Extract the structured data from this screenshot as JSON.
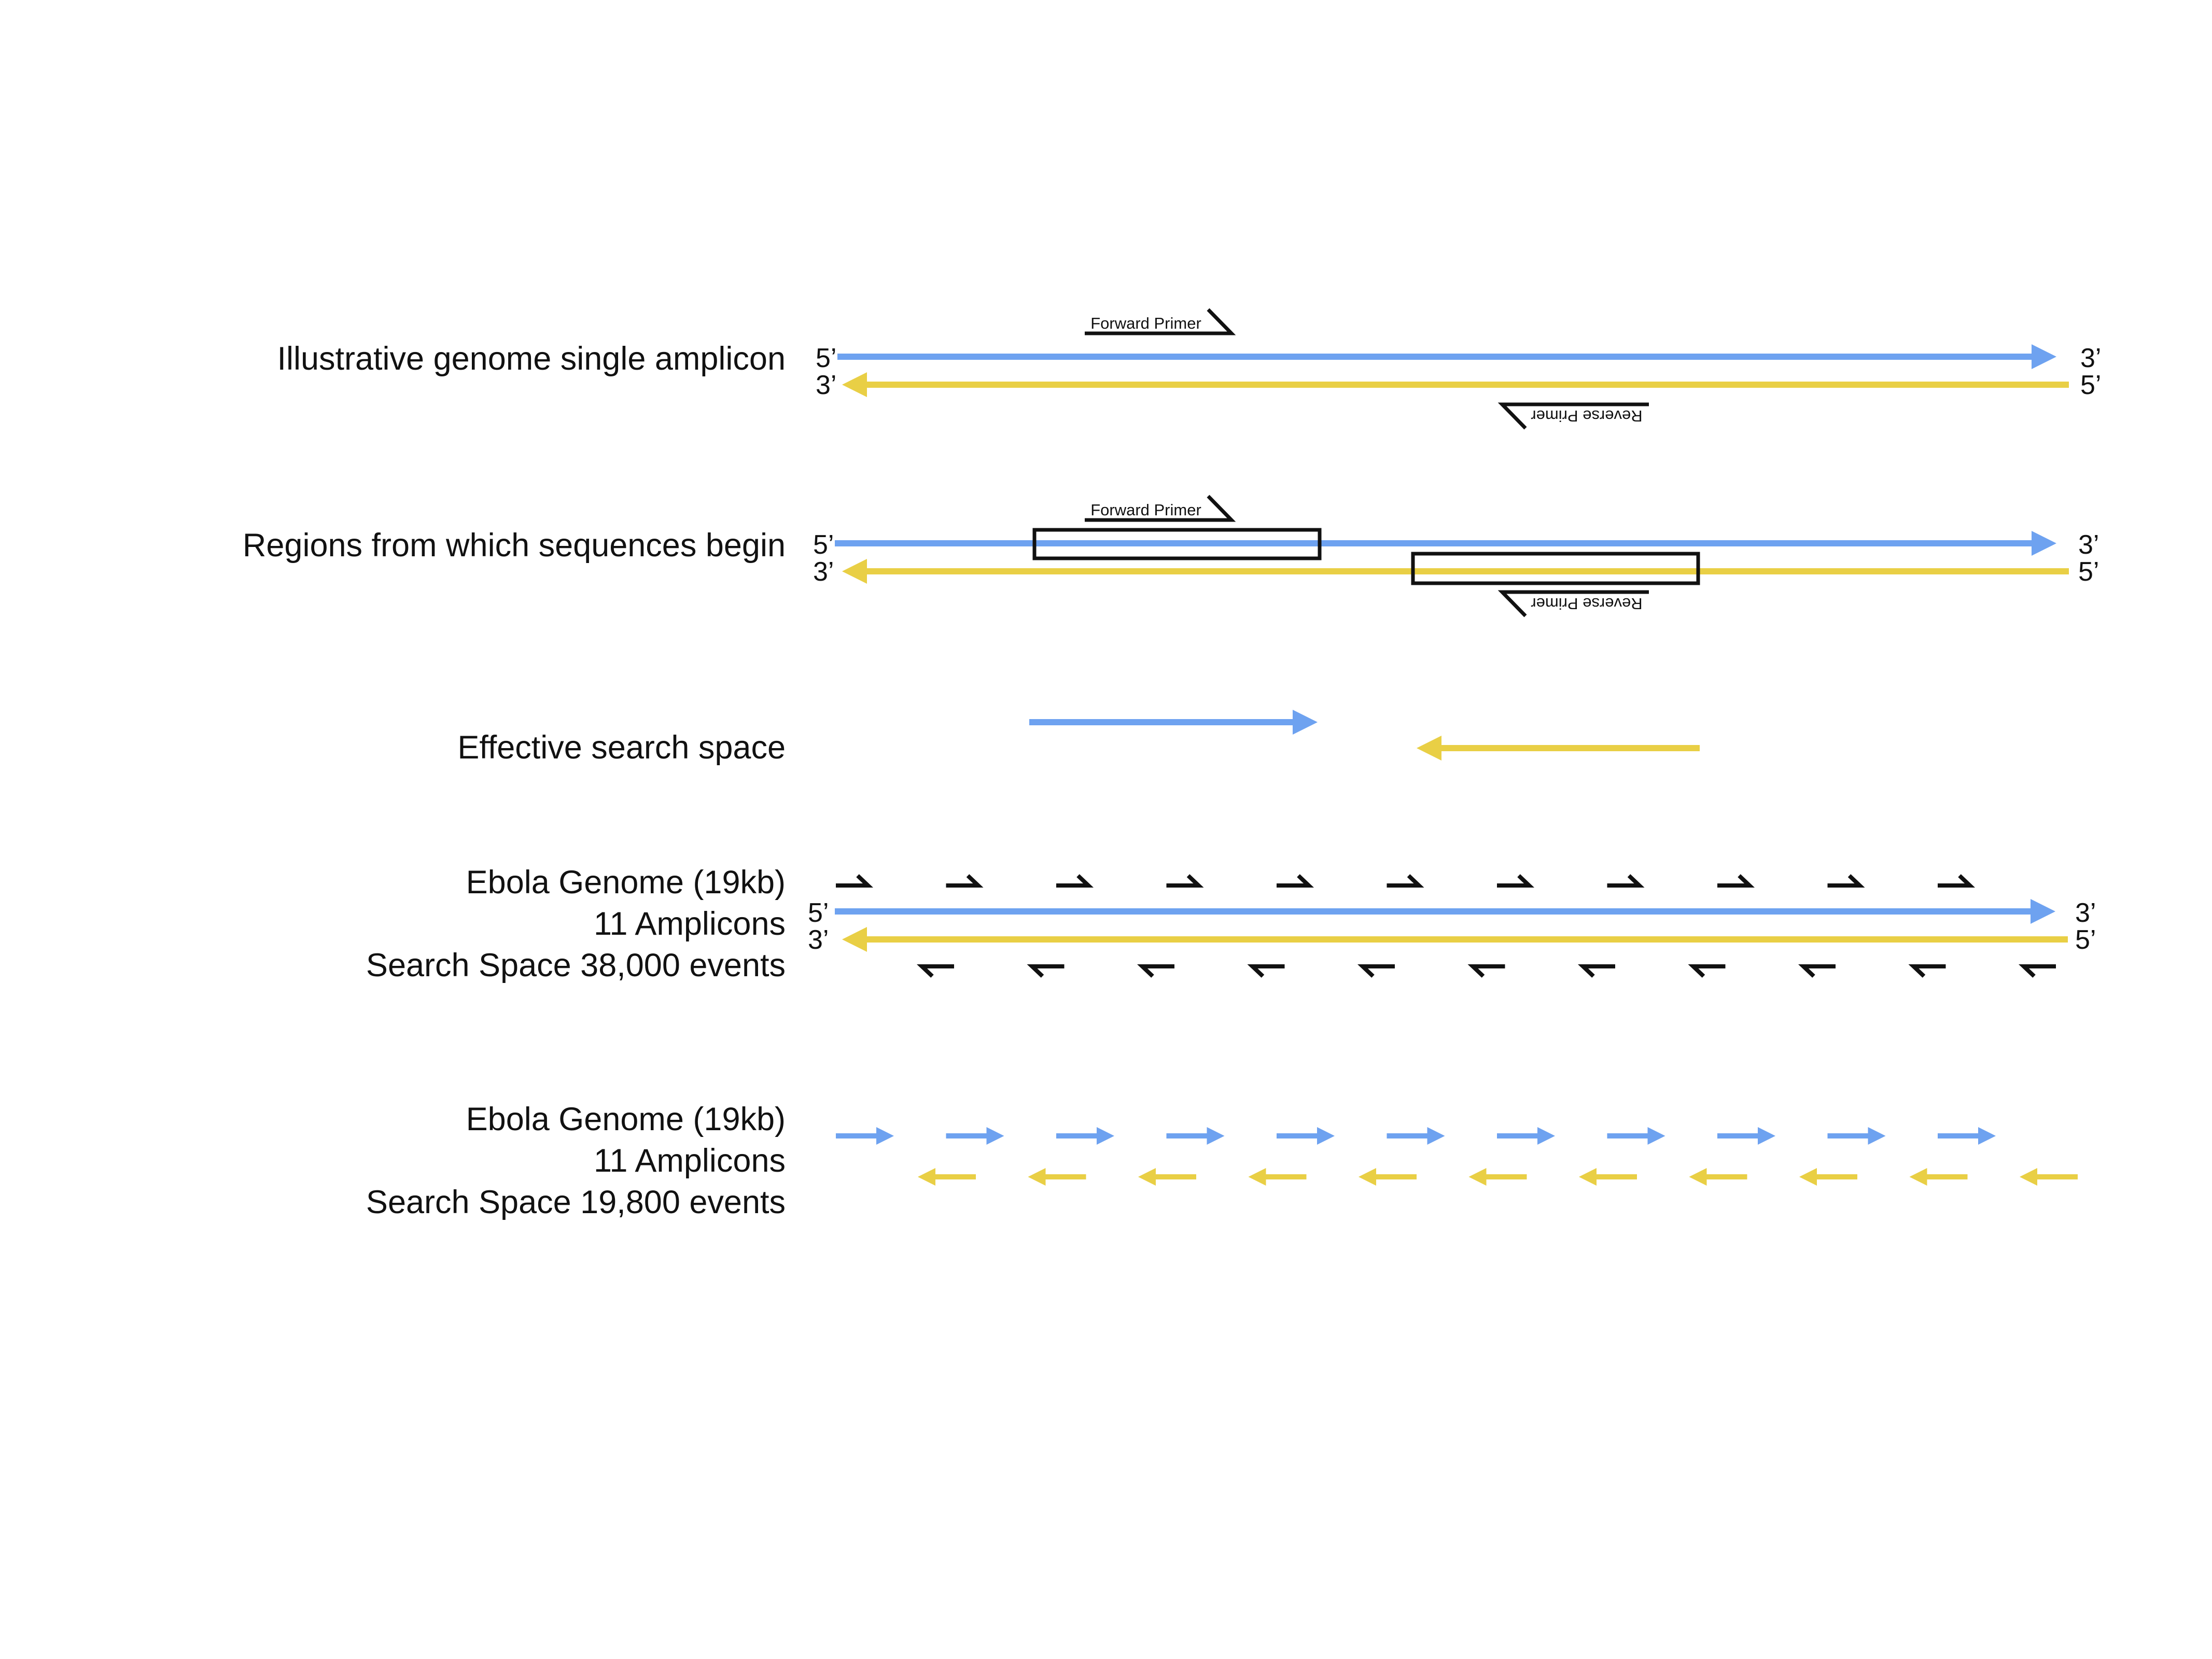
{
  "colors": {
    "forward_strand": "#6ea2f0",
    "reverse_strand": "#e9cf45",
    "ink": "#111111"
  },
  "rows": [
    {
      "id": "single",
      "label_lines": [
        "Illustrative genome single amplicon"
      ],
      "end_labels": {
        "top_left": "5’",
        "top_right": "3’",
        "bottom_left": "3’",
        "bottom_right": "5’"
      },
      "forward_primer_label": "Forward Primer",
      "reverse_primer_label": "Reverse Primer"
    },
    {
      "id": "regions",
      "label_lines": [
        "Regions from which sequences begin"
      ],
      "end_labels": {
        "top_left": "5’",
        "top_right": "3’",
        "bottom_left": "3’",
        "bottom_right": "5’"
      },
      "forward_primer_label": "Forward Primer",
      "reverse_primer_label": "Reverse Primer"
    },
    {
      "id": "effective",
      "label_lines": [
        "Effective search space"
      ]
    },
    {
      "id": "ebola-primers",
      "label_lines": [
        "Ebola Genome (19kb)",
        "11 Amplicons",
        "Search Space 38,000 events"
      ],
      "end_labels": {
        "top_left": "5’",
        "top_right": "3’",
        "bottom_left": "3’",
        "bottom_right": "5’"
      },
      "amplicon_count": 11
    },
    {
      "id": "ebola-segments",
      "label_lines": [
        "Ebola Genome (19kb)",
        "11 Amplicons",
        "Search Space 19,800 events"
      ],
      "amplicon_count": 11
    }
  ]
}
